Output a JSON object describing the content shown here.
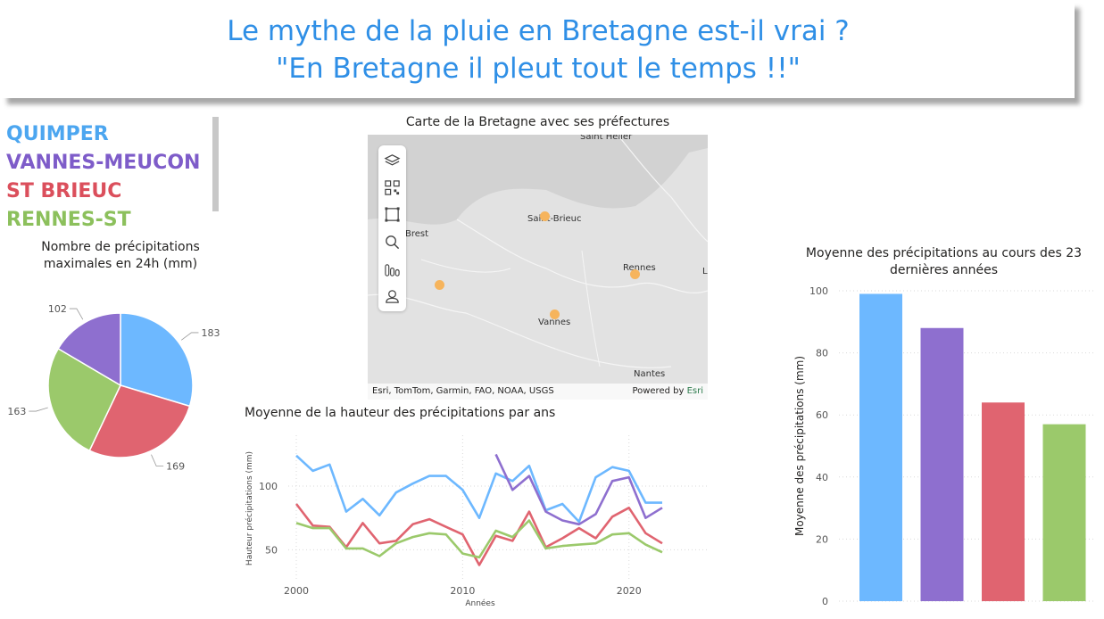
{
  "header": {
    "line1": "Le mythe de la pluie en Bretagne est-il vrai ?",
    "line2": "\"En Bretagne il pleut tout le temps !!\""
  },
  "colors": {
    "quimper": "#6db8ff",
    "vannes": "#8e6fcf",
    "stbrieuc": "#e06470",
    "rennes": "#9bc96b",
    "title": "#2f8fe6"
  },
  "legend": [
    {
      "label": "QUIMPER",
      "color": "#4ca6f0"
    },
    {
      "label": "VANNES-MEUCON",
      "color": "#7e5cc9"
    },
    {
      "label": "ST BRIEUC",
      "color": "#db4f5c"
    },
    {
      "label": "RENNES-ST",
      "color": "#8cc05c"
    }
  ],
  "map": {
    "title": "Carte de la Bretagne avec ses préfectures",
    "labels": {
      "saint_helier": "Saint Helier",
      "saint_brieuc": "Saint-Brieuc",
      "brest": "Brest",
      "rennes": "Rennes",
      "vannes": "Vannes",
      "nantes": "Nantes",
      "edge": "L"
    },
    "attribution": "Esri, TomTom, Garmin, FAO, NOAA, USGS",
    "powered_by": "Powered by ",
    "esri": "Esri",
    "tools": [
      "layers-icon",
      "qr-icon",
      "select-icon",
      "search-icon",
      "bars-icon",
      "person-icon"
    ]
  },
  "chart_data": [
    {
      "type": "pie",
      "title": "Nombre de précipitations maximales en 24h (mm)",
      "categories": [
        "QUIMPER",
        "ST BRIEUC",
        "RENNES-ST",
        "VANNES-MEUCON"
      ],
      "values": [
        183,
        169,
        163,
        102
      ],
      "colors": [
        "#6db8ff",
        "#e06470",
        "#9bc96b",
        "#8e6fcf"
      ]
    },
    {
      "type": "line",
      "title": "Moyenne de la hauteur des précipitations par ans",
      "xlabel": "Années",
      "ylabel": "Hauteur précipitations (mm)",
      "x": [
        2000,
        2001,
        2002,
        2003,
        2004,
        2005,
        2006,
        2007,
        2008,
        2009,
        2010,
        2011,
        2012,
        2013,
        2014,
        2015,
        2016,
        2017,
        2018,
        2019,
        2020,
        2021,
        2022
      ],
      "xticks": [
        "2000",
        "2010",
        "2020"
      ],
      "yticks": [
        "50",
        "100"
      ],
      "ylim": [
        25,
        140
      ],
      "series": [
        {
          "name": "QUIMPER",
          "color": "#6db8ff",
          "values": [
            124,
            112,
            117,
            80,
            90,
            77,
            95,
            102,
            108,
            108,
            97,
            75,
            110,
            104,
            116,
            81,
            86,
            72,
            107,
            115,
            112,
            87,
            87
          ]
        },
        {
          "name": "VANNES-MEUCON",
          "color": "#8e6fcf",
          "values": [
            null,
            null,
            null,
            null,
            null,
            null,
            null,
            null,
            null,
            null,
            null,
            null,
            125,
            97,
            108,
            80,
            73,
            70,
            78,
            104,
            107,
            75,
            83
          ]
        },
        {
          "name": "ST BRIEUC",
          "color": "#e06470",
          "values": [
            86,
            69,
            68,
            52,
            71,
            55,
            57,
            70,
            74,
            68,
            62,
            38,
            61,
            57,
            80,
            52,
            59,
            67,
            59,
            76,
            83,
            63,
            55
          ]
        },
        {
          "name": "RENNES-ST",
          "color": "#9bc96b",
          "values": [
            71,
            67,
            67,
            51,
            51,
            45,
            55,
            60,
            63,
            62,
            47,
            44,
            65,
            60,
            73,
            51,
            53,
            54,
            55,
            62,
            63,
            54,
            48
          ]
        }
      ]
    },
    {
      "type": "bar",
      "title": "Moyenne des précipitations au cours des 23 dernières années",
      "ylabel": "Moyenne des précipitations (mm)",
      "categories": [
        "QUIMPER",
        "VANNES-MEUCON",
        "ST BRIEUC",
        "RENNES-ST"
      ],
      "values": [
        99,
        88,
        64,
        57
      ],
      "colors": [
        "#6db8ff",
        "#8e6fcf",
        "#e06470",
        "#9bc96b"
      ],
      "ylim": [
        0,
        100
      ],
      "yticks": [
        "0",
        "20",
        "40",
        "60",
        "80",
        "100"
      ]
    }
  ]
}
